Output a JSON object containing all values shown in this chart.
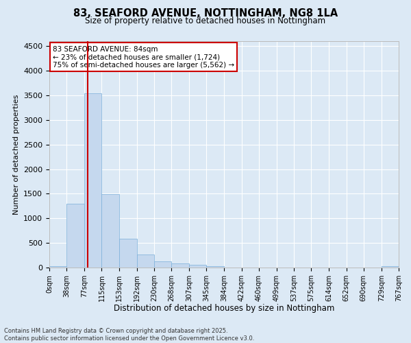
{
  "title": "83, SEAFORD AVENUE, NOTTINGHAM, NG8 1LA",
  "subtitle": "Size of property relative to detached houses in Nottingham",
  "xlabel": "Distribution of detached houses by size in Nottingham",
  "ylabel": "Number of detached properties",
  "bar_color": "#c5d8ee",
  "bar_edge_color": "#7aafda",
  "background_color": "#dce9f5",
  "grid_color": "#ffffff",
  "fig_background": "#dce9f5",
  "annotation_line_color": "#cc0000",
  "annotation_box_color": "#cc0000",
  "annotation_text": "83 SEAFORD AVENUE: 84sqm\n← 23% of detached houses are smaller (1,724)\n75% of semi-detached houses are larger (5,562) →",
  "property_size": 84,
  "bin_edges": [
    0,
    38,
    77,
    115,
    153,
    192,
    230,
    268,
    307,
    345,
    384,
    422,
    460,
    499,
    537,
    575,
    614,
    652,
    690,
    729,
    767
  ],
  "bin_labels": [
    "0sqm",
    "38sqm",
    "77sqm",
    "115sqm",
    "153sqm",
    "192sqm",
    "230sqm",
    "268sqm",
    "307sqm",
    "345sqm",
    "384sqm",
    "422sqm",
    "460sqm",
    "499sqm",
    "537sqm",
    "575sqm",
    "614sqm",
    "652sqm",
    "690sqm",
    "729sqm",
    "767sqm"
  ],
  "counts": [
    30,
    1300,
    3540,
    1490,
    590,
    260,
    130,
    80,
    55,
    30,
    0,
    0,
    0,
    0,
    0,
    0,
    0,
    0,
    0,
    30
  ],
  "ylim": [
    0,
    4600
  ],
  "yticks": [
    0,
    500,
    1000,
    1500,
    2000,
    2500,
    3000,
    3500,
    4000,
    4500
  ],
  "footer": "Contains HM Land Registry data © Crown copyright and database right 2025.\nContains public sector information licensed under the Open Government Licence v3.0.",
  "figsize": [
    6.0,
    5.0
  ],
  "dpi": 100
}
